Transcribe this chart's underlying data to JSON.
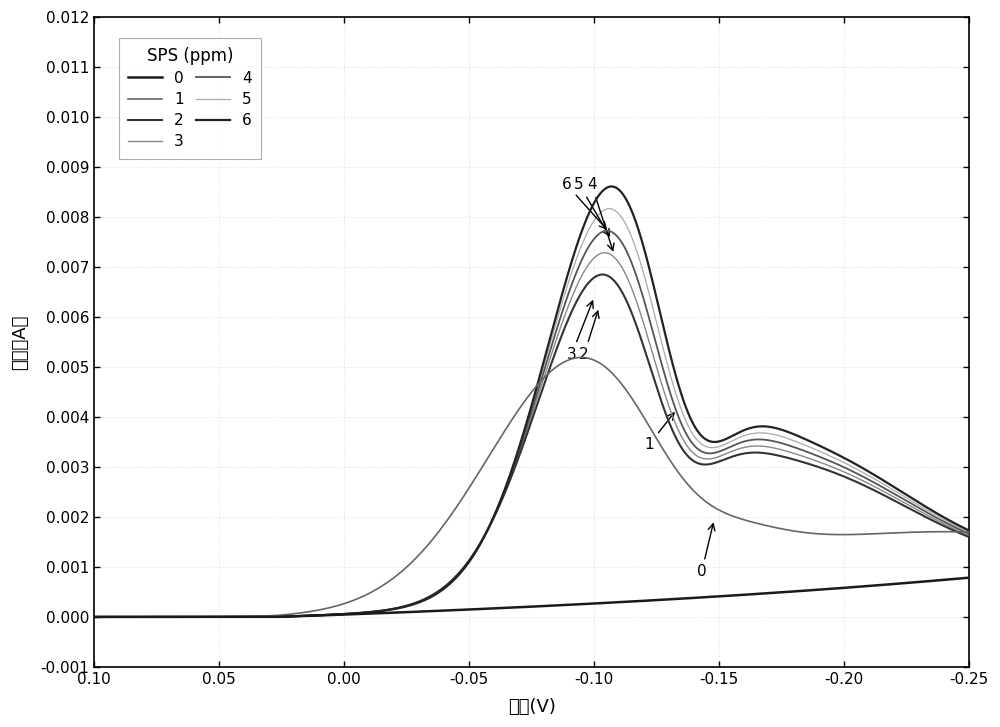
{
  "xlabel": "电压(V)",
  "ylabel": "电流（A）",
  "xlim": [
    0.1,
    -0.25
  ],
  "ylim": [
    -0.001,
    0.012
  ],
  "xticks": [
    0.1,
    0.05,
    0.0,
    -0.05,
    -0.1,
    -0.15,
    -0.2,
    -0.25
  ],
  "xtick_labels": [
    "0.10",
    "0.05",
    "0.00",
    "-0.05",
    "-0.10",
    "-0.15",
    "-0.20",
    "-0.25"
  ],
  "yticks": [
    -0.001,
    0.0,
    0.001,
    0.002,
    0.003,
    0.004,
    0.005,
    0.006,
    0.007,
    0.008,
    0.009,
    0.01,
    0.011,
    0.012
  ],
  "ytick_labels": [
    "-0.001",
    "0.000",
    "0.001",
    "0.002",
    "0.003",
    "0.004",
    "0.005",
    "0.006",
    "0.007",
    "0.008",
    "0.009",
    "0.010",
    "0.011",
    "0.012"
  ],
  "legend_title": "SPS (ppm)",
  "series_labels": [
    "0",
    "1",
    "2",
    "3",
    "4",
    "5",
    "6"
  ],
  "colors": {
    "0": "#1a1a1a",
    "1": "#666666",
    "2": "#333333",
    "3": "#888888",
    "4": "#555555",
    "5": "#aaaaaa",
    "6": "#222222"
  },
  "linewidths": {
    "0": 1.8,
    "1": 1.2,
    "2": 1.5,
    "3": 1.0,
    "4": 1.3,
    "5": 0.9,
    "6": 1.6
  }
}
